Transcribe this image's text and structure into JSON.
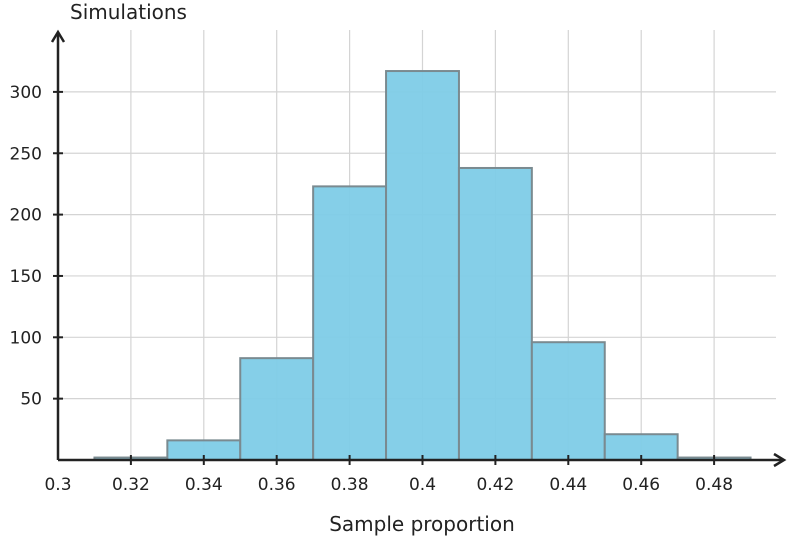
{
  "chart_data": {
    "type": "bar",
    "title": "",
    "xlabel": "Sample proportion",
    "ylabel": "Simulations",
    "xlim": [
      0.3,
      0.5
    ],
    "ylim": [
      0,
      350
    ],
    "x_ticks": [
      0.3,
      0.32,
      0.34,
      0.36,
      0.38,
      0.4,
      0.42,
      0.44,
      0.46,
      0.48
    ],
    "x_tick_labels": [
      "0.3",
      "0.32",
      "0.34",
      "0.36",
      "0.38",
      "0.4",
      "0.42",
      "0.44",
      "0.46",
      "0.48"
    ],
    "y_ticks": [
      50,
      100,
      150,
      200,
      250,
      300
    ],
    "y_tick_labels": [
      "50",
      "100",
      "150",
      "200",
      "250",
      "300"
    ],
    "grid": true,
    "bins": [
      {
        "x0": 0.31,
        "x1": 0.33,
        "value": 2
      },
      {
        "x0": 0.33,
        "x1": 0.35,
        "value": 16
      },
      {
        "x0": 0.35,
        "x1": 0.37,
        "value": 83
      },
      {
        "x0": 0.37,
        "x1": 0.39,
        "value": 223
      },
      {
        "x0": 0.39,
        "x1": 0.41,
        "value": 317
      },
      {
        "x0": 0.41,
        "x1": 0.43,
        "value": 238
      },
      {
        "x0": 0.43,
        "x1": 0.45,
        "value": 96
      },
      {
        "x0": 0.45,
        "x1": 0.47,
        "value": 21
      },
      {
        "x0": 0.47,
        "x1": 0.49,
        "value": 2
      }
    ],
    "colors": {
      "bar_fill": "#7ecce7",
      "bar_stroke": "#7a8a90",
      "grid": "#d4d4d4",
      "axis": "#222222"
    }
  }
}
